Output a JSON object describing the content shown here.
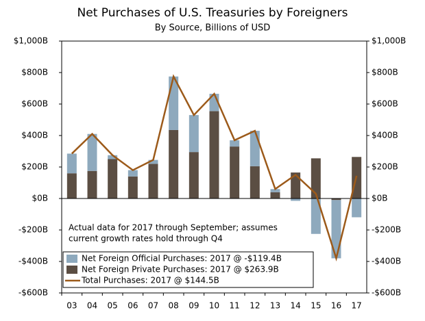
{
  "chart_data": {
    "type": "stacked-bar-line",
    "title": "Net Purchases of U.S. Treasuries by Foreigners",
    "subtitle": "By Source, Billions of USD",
    "annotation": [
      "Actual data for 2017 through September; assumes",
      "current growth rates hold through Q4"
    ],
    "categories": [
      "03",
      "04",
      "05",
      "06",
      "07",
      "08",
      "09",
      "10",
      "11",
      "12",
      "13",
      "14",
      "15",
      "16",
      "17"
    ],
    "series": [
      {
        "name": "Net Foreign Private Purchases: 2017 @ $263.9B",
        "color": "#5b4e43",
        "kind": "bar",
        "values": [
          160,
          175,
          250,
          140,
          220,
          435,
          295,
          555,
          330,
          205,
          40,
          165,
          255,
          -10,
          263.9
        ]
      },
      {
        "name": "Net Foreign Official Purchases: 2017 @ -$119.4B",
        "color": "#8ea9bd",
        "kind": "bar",
        "values": [
          125,
          235,
          25,
          40,
          25,
          340,
          235,
          110,
          40,
          225,
          20,
          -15,
          -225,
          -370,
          -119.4
        ]
      },
      {
        "name": "Total Purchases: 2017 @ $144.5B",
        "color": "#9c5a1a",
        "kind": "line",
        "values": [
          285,
          410,
          275,
          180,
          245,
          775,
          530,
          665,
          370,
          430,
          60,
          150,
          30,
          -380,
          144.5
        ]
      }
    ],
    "legend_order": [
      1,
      0,
      2
    ],
    "ylim": [
      -600,
      1000
    ],
    "yticks": [
      {
        "value": -600,
        "label": "-$600B"
      },
      {
        "value": -400,
        "label": "-$400B"
      },
      {
        "value": -200,
        "label": "-$200B"
      },
      {
        "value": 0,
        "label": "$0B"
      },
      {
        "value": 200,
        "label": "$200B"
      },
      {
        "value": 400,
        "label": "$400B"
      },
      {
        "value": 600,
        "label": "$600B"
      },
      {
        "value": 800,
        "label": "$800B"
      },
      {
        "value": 1000,
        "label": "$1,000B"
      }
    ],
    "y2lim": [
      -600,
      1000
    ],
    "y2ticks": [
      {
        "value": -600,
        "label": "-$600B"
      },
      {
        "value": -400,
        "label": "-$400B"
      },
      {
        "value": -200,
        "label": "-$200B"
      },
      {
        "value": 0,
        "label": "$0B"
      },
      {
        "value": 200,
        "label": "$200B"
      },
      {
        "value": 400,
        "label": "$400B"
      },
      {
        "value": 600,
        "label": "$600B"
      },
      {
        "value": 800,
        "label": "$800B"
      },
      {
        "value": 1000,
        "label": "$1,000B"
      }
    ]
  }
}
